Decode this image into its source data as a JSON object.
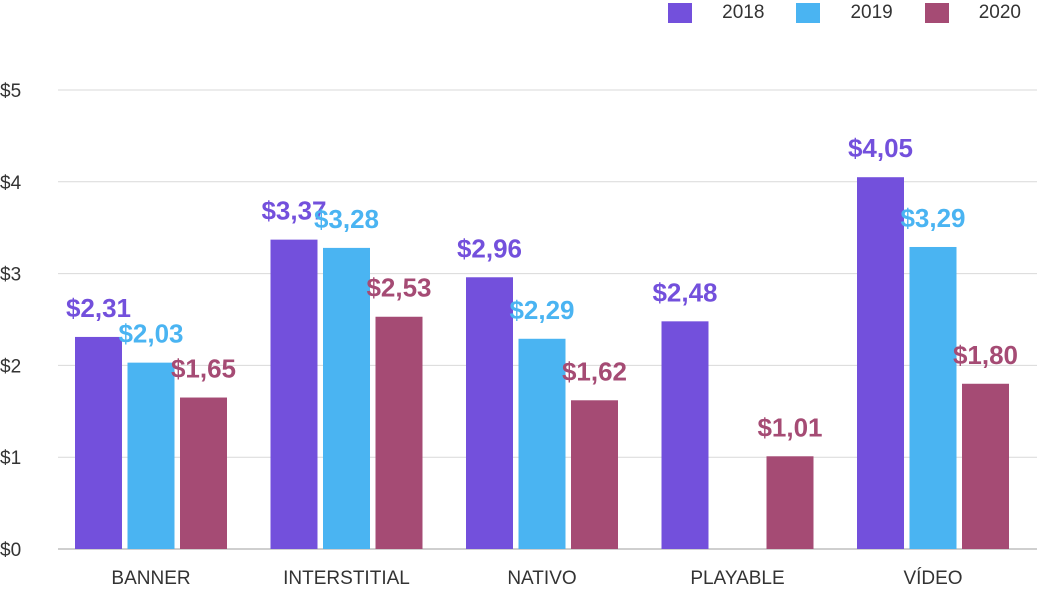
{
  "chart_data": {
    "type": "bar",
    "categories": [
      "BANNER",
      "INTERSTITIAL",
      "NATIVO",
      "PLAYABLE",
      "VÍDEO"
    ],
    "series": [
      {
        "name": "2018",
        "color": "#7350dc",
        "values": [
          2.31,
          3.37,
          2.96,
          2.48,
          4.05
        ],
        "labels": [
          "$2,31",
          "$3,37",
          "$2,96",
          "$2,48",
          "$4,05"
        ]
      },
      {
        "name": "2019",
        "color": "#4ab4f2",
        "values": [
          2.03,
          3.28,
          2.29,
          null,
          3.29
        ],
        "labels": [
          "$2,03",
          "$3,28",
          "$2,29",
          "",
          "$3,29"
        ]
      },
      {
        "name": "2020",
        "color": "#a54b74",
        "values": [
          1.65,
          2.53,
          1.62,
          1.01,
          1.8
        ],
        "labels": [
          "$1,65",
          "$2,53",
          "$1,62",
          "$1,01",
          "$1,80"
        ]
      }
    ],
    "yticks": [
      0,
      1,
      2,
      3,
      4,
      5
    ],
    "ytick_labels": [
      "$0",
      "$1",
      "$2",
      "$3",
      "$4",
      "$5"
    ],
    "ylim": [
      0,
      5
    ],
    "grid": true,
    "legend_position": "top-right",
    "title": "",
    "xlabel": "",
    "ylabel": ""
  }
}
